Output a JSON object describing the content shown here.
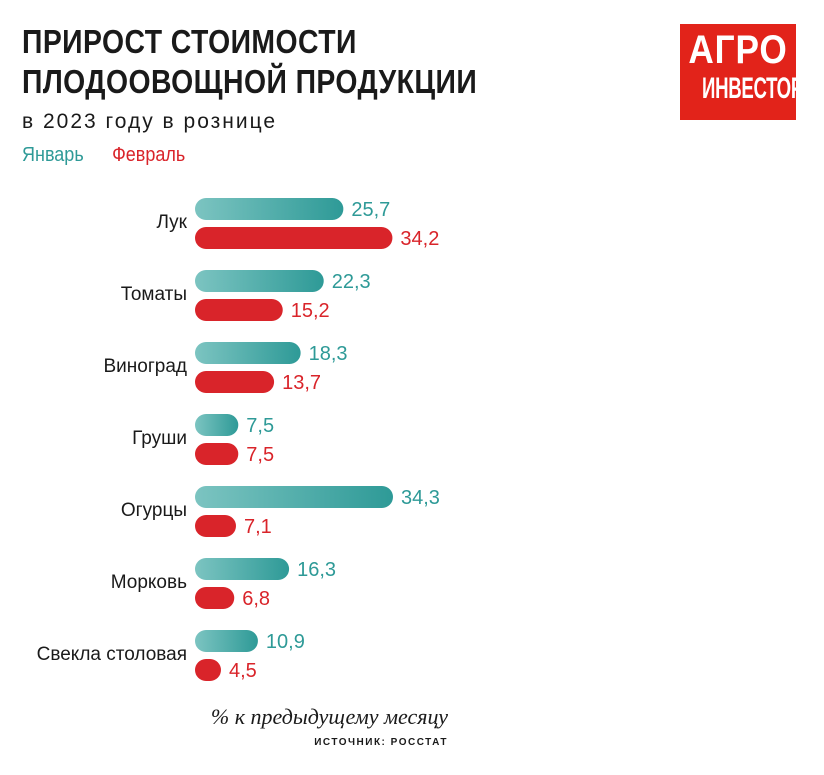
{
  "header": {
    "title_line1": "ПРИРОСТ СТОИМОСТИ",
    "title_line2": "ПЛОДООВОЩНОЙ ПРОДУКЦИИ",
    "subtitle": "в 2023 году в рознице"
  },
  "logo": {
    "line1": "АГРО",
    "line2": "ИНВЕСТОР"
  },
  "legend": {
    "january": "Январь",
    "february": "Февраль"
  },
  "footer": {
    "note": "% к предыдущему месяцу",
    "source": "ИСТОЧНИК: РОССТАТ"
  },
  "colors": {
    "january": "#2e9a97",
    "january_light": "#7cc4c1",
    "february": "#d9242a",
    "logo": "#e2231a"
  },
  "chart_data": {
    "type": "bar",
    "orientation": "horizontal",
    "title": "ПРИРОСТ СТОИМОСТИ ПЛОДООВОЩНОЙ ПРОДУКЦИИ",
    "subtitle": "в 2023 году в рознице",
    "xlabel": "% к предыдущему месяцу",
    "ylabel": "",
    "categories": [
      "Лук",
      "Томаты",
      "Виноград",
      "Груши",
      "Огурцы",
      "Морковь",
      "Свекла столовая"
    ],
    "series": [
      {
        "name": "Январь",
        "values": [
          25.7,
          22.3,
          18.3,
          7.5,
          34.3,
          16.3,
          10.9
        ],
        "labels": [
          "25,7",
          "22,3",
          "18,3",
          "7,5",
          "34,3",
          "16,3",
          "10,9"
        ]
      },
      {
        "name": "Февраль",
        "values": [
          34.2,
          15.2,
          13.7,
          7.5,
          7.1,
          6.8,
          4.5
        ],
        "labels": [
          "34,2",
          "15,2",
          "13,7",
          "7,5",
          "7,1",
          "6,8",
          "4,5"
        ]
      }
    ],
    "xlim": [
      0,
      34.3
    ],
    "grid": false,
    "legend": "top-left"
  }
}
